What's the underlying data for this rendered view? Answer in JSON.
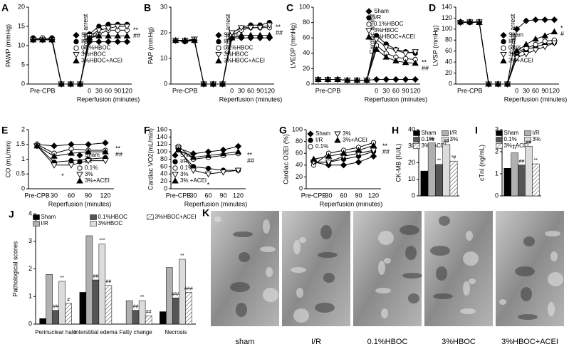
{
  "chart_data": [
    {
      "type": "line",
      "panel": "A",
      "ylabel": "PAWP (mmHg)",
      "xlabel": "Reperfusion (minutes)",
      "arrest_label": "Cardiac arrest",
      "categories": [
        null,
        "Pre-CPB",
        null,
        null,
        null,
        null,
        "0",
        "30",
        "60",
        "90",
        "120"
      ],
      "ylim": [
        0,
        20
      ],
      "yticks": [
        0,
        5,
        10,
        15,
        20
      ],
      "legend": "center right",
      "annotations": [
        "**",
        "##"
      ],
      "series": [
        {
          "name": "Sham",
          "color": "#000000",
          "marker": "diamond",
          "values": [
            11.5,
            11.5,
            11.5,
            0,
            0,
            0,
            11,
            11,
            11,
            11,
            11
          ]
        },
        {
          "name": "I/R",
          "color": "#000000",
          "marker": "circle",
          "values": [
            12,
            11.5,
            12,
            0,
            0,
            0,
            13,
            15,
            15.5,
            15.5,
            15.5
          ]
        },
        {
          "name": "0.1%HBOC",
          "color": "#000000",
          "marker": "circle-open",
          "values": [
            11.5,
            12,
            11.5,
            0,
            0,
            0,
            12,
            13,
            14,
            14,
            14
          ]
        },
        {
          "name": "3%HBOC",
          "color": "#000000",
          "marker": "triangle-down-open",
          "values": [
            11.5,
            11.5,
            11.5,
            0,
            0,
            0,
            12.5,
            14,
            14.5,
            15,
            15
          ]
        },
        {
          "name": "3%HBOC+ACEI",
          "color": "#000000",
          "marker": "triangle-up",
          "values": [
            11.5,
            11.5,
            11.5,
            0,
            0,
            0,
            12,
            12.5,
            12.5,
            12.5,
            12.5
          ]
        }
      ]
    },
    {
      "type": "line",
      "panel": "B",
      "ylabel": "PAP (mmHg)",
      "xlabel": "Reperfusion (minutes)",
      "arrest_label": "Cardiac arrest",
      "categories": [
        null,
        "Pre-CPB",
        null,
        null,
        null,
        null,
        "0",
        "30",
        "60",
        "90",
        "120"
      ],
      "ylim": [
        0,
        30
      ],
      "yticks": [
        0,
        10,
        20,
        30
      ],
      "legend": "center right",
      "annotations": [
        "**",
        "##"
      ],
      "series": [
        {
          "name": "Sham",
          "color": "#000000",
          "marker": "diamond",
          "values": [
            17,
            17,
            17,
            0,
            0,
            0,
            18,
            18,
            18,
            18,
            18
          ]
        },
        {
          "name": "I/R",
          "color": "#000000",
          "marker": "circle",
          "values": [
            17,
            16.5,
            17,
            0,
            0,
            0,
            20,
            22,
            23,
            23,
            24
          ]
        },
        {
          "name": "0.1%HBOC",
          "color": "#000000",
          "marker": "circle-open",
          "values": [
            17,
            17,
            17,
            0,
            0,
            0,
            19,
            21,
            22,
            22,
            22
          ]
        },
        {
          "name": "3%HBOC",
          "color": "#000000",
          "marker": "triangle-down-open",
          "values": [
            17,
            17,
            17.5,
            0,
            0,
            0,
            20,
            22,
            22,
            22,
            23
          ]
        },
        {
          "name": "3%HBOC+ACEI",
          "color": "#000000",
          "marker": "triangle-up",
          "values": [
            17,
            17,
            17,
            0,
            0,
            0,
            18,
            19,
            19,
            19,
            19
          ]
        }
      ]
    },
    {
      "type": "line",
      "panel": "C",
      "ylabel": "LVEDP (mmHg)",
      "xlabel": "Reperfusion (minutes)",
      "arrest_label": "Cardiac arrest",
      "categories": [
        null,
        "Pre-CPB",
        null,
        null,
        null,
        null,
        "0",
        "30",
        "60",
        "90",
        "120"
      ],
      "ylim": [
        0,
        100
      ],
      "yticks": [
        0,
        20,
        40,
        60,
        80,
        100
      ],
      "legend": "upper right",
      "annotations": [
        "**",
        "##"
      ],
      "series": [
        {
          "name": "Sham",
          "color": "#000000",
          "marker": "diamond",
          "values": [
            6,
            6,
            6,
            5,
            5,
            5,
            6,
            6,
            6,
            6,
            6
          ]
        },
        {
          "name": "I/R",
          "color": "#000000",
          "marker": "circle",
          "values": [
            6,
            6,
            6,
            5,
            5,
            5,
            63,
            52,
            45,
            42,
            40
          ]
        },
        {
          "name": "0.1%HBOC",
          "color": "#000000",
          "marker": "circle-open",
          "values": [
            6,
            6,
            6,
            5,
            5,
            5,
            50,
            40,
            35,
            33,
            32
          ]
        },
        {
          "name": "3%HBOC",
          "color": "#000000",
          "marker": "triangle-down-open",
          "values": [
            6,
            6,
            6,
            5,
            5,
            5,
            58,
            48,
            44,
            40,
            42
          ]
        },
        {
          "name": "3%HBOC+ACEI",
          "color": "#000000",
          "marker": "triangle-up",
          "values": [
            6,
            6,
            6,
            5,
            5,
            5,
            45,
            35,
            30,
            28,
            27
          ]
        }
      ]
    },
    {
      "type": "line",
      "panel": "D",
      "ylabel": "LVSP (mmHg)",
      "xlabel": "Reperfusion (minutes)",
      "arrest_label": "Cardiac arrest",
      "categories": [
        null,
        "Pre-CPB",
        null,
        null,
        null,
        null,
        "0",
        "30",
        "60",
        "90",
        "120"
      ],
      "ylim": [
        0,
        140
      ],
      "yticks": [
        0,
        20,
        40,
        60,
        80,
        100,
        120,
        140
      ],
      "legend": "center right",
      "annotations": [
        "*",
        "#"
      ],
      "series": [
        {
          "name": "Sham",
          "color": "#000000",
          "marker": "diamond",
          "values": [
            113,
            113,
            113,
            0,
            0,
            0,
            100,
            115,
            117,
            117,
            117
          ]
        },
        {
          "name": "I/R",
          "color": "#000000",
          "marker": "circle",
          "values": [
            112,
            112,
            113,
            0,
            0,
            0,
            55,
            62,
            68,
            72,
            75
          ]
        },
        {
          "name": "0.1%",
          "color": "#000000",
          "marker": "circle-open",
          "values": [
            113,
            112,
            113,
            0,
            0,
            0,
            58,
            65,
            72,
            78,
            80
          ]
        },
        {
          "name": "3%",
          "color": "#000000",
          "marker": "triangle-down-open",
          "values": [
            112,
            113,
            113,
            0,
            0,
            0,
            48,
            55,
            62,
            68,
            75
          ]
        },
        {
          "name": "3%+ACEI",
          "color": "#000000",
          "marker": "triangle-up",
          "values": [
            113,
            113,
            112,
            0,
            0,
            0,
            60,
            72,
            82,
            88,
            95
          ]
        }
      ]
    },
    {
      "type": "line",
      "panel": "E",
      "ylabel": "CO (mL/min)",
      "xlabel": "Reperfusion (minutes)",
      "categories": [
        "Pre-CPB",
        "30",
        "60",
        "90",
        "120"
      ],
      "ylim": [
        0,
        2
      ],
      "yticks": [
        0,
        0.5,
        1,
        1.5,
        2
      ],
      "legend": "lower right",
      "annotations": [
        "**",
        "##"
      ],
      "note_below": "*",
      "series": [
        {
          "name": "Sham",
          "color": "#000000",
          "marker": "diamond",
          "values": [
            1.5,
            1.45,
            1.5,
            1.5,
            1.55
          ]
        },
        {
          "name": "I/R",
          "color": "#000000",
          "marker": "circle",
          "values": [
            1.45,
            0.9,
            0.95,
            1.0,
            1.05
          ]
        },
        {
          "name": "0.1%",
          "color": "#000000",
          "marker": "circle-open",
          "values": [
            1.5,
            1.2,
            1.35,
            1.3,
            1.3
          ]
        },
        {
          "name": "3%",
          "color": "#000000",
          "marker": "triangle-down-open",
          "values": [
            1.45,
            0.8,
            0.8,
            0.95,
            0.95
          ]
        },
        {
          "name": "3%+ACEI",
          "color": "#000000",
          "marker": "triangle-up",
          "values": [
            1.45,
            1.1,
            1.2,
            1.25,
            1.25
          ]
        }
      ]
    },
    {
      "type": "line",
      "panel": "F",
      "ylabel": "Cardiac VO2(mL/min)",
      "xlabel": "Reperfusion (minutes)",
      "categories": [
        "Pre-CPB",
        "30",
        "60",
        "90",
        "120"
      ],
      "ylim": [
        0,
        160
      ],
      "yticks": [
        0,
        20,
        40,
        60,
        80,
        100,
        120,
        140,
        160
      ],
      "legend": "lower left",
      "annotations": [
        "**",
        "##"
      ],
      "note_below": "*",
      "series": [
        {
          "name": "Sham",
          "color": "#000000",
          "marker": "diamond",
          "values": [
            110,
            95,
            100,
            105,
            115
          ]
        },
        {
          "name": "I/R",
          "color": "#000000",
          "marker": "circle",
          "values": [
            105,
            60,
            55,
            50,
            50
          ]
        },
        {
          "name": "0.1%",
          "color": "#000000",
          "marker": "circle-open",
          "values": [
            115,
            80,
            85,
            90,
            95
          ]
        },
        {
          "name": "3%",
          "color": "#000000",
          "marker": "triangle-down-open",
          "values": [
            110,
            50,
            40,
            45,
            50
          ]
        },
        {
          "name": "3% +ACEI",
          "color": "#000000",
          "marker": "triangle-up",
          "values": [
            105,
            85,
            90,
            95,
            100
          ]
        }
      ]
    },
    {
      "type": "line",
      "panel": "G",
      "ylabel": "Cardiac O2EI (%)",
      "xlabel": "Reperfusion (minutes)",
      "categories": [
        "Pre-CPB",
        "30",
        "60",
        "90",
        "120"
      ],
      "ylim": [
        0,
        100
      ],
      "yticks": [
        0,
        20,
        40,
        60,
        80,
        100
      ],
      "legend": "upper left",
      "annotations": [
        "**",
        "##"
      ],
      "series": [
        {
          "name": "Sham",
          "color": "#000000",
          "marker": "diamond",
          "values": [
            45,
            40,
            40,
            45,
            55
          ]
        },
        {
          "name": "I/R",
          "color": "#000000",
          "marker": "circle",
          "values": [
            45,
            45,
            50,
            55,
            63
          ]
        },
        {
          "name": "0.1%",
          "color": "#000000",
          "marker": "circle-open",
          "values": [
            40,
            60,
            65,
            70,
            78
          ]
        },
        {
          "name": "3%",
          "color": "#000000",
          "marker": "triangle-down-open",
          "values": [
            45,
            45,
            55,
            60,
            65
          ]
        },
        {
          "name": "3%+ACEI",
          "color": "#000000",
          "marker": "triangle-up",
          "values": [
            50,
            55,
            60,
            65,
            73
          ]
        }
      ]
    },
    {
      "type": "bar",
      "panel": "H",
      "ylabel": "CK-MB (IU/L)",
      "ylim": [
        0,
        40
      ],
      "yticks": [
        0,
        10,
        20,
        30,
        40
      ],
      "legend": "upper center",
      "series": [
        {
          "name": "Sham",
          "color": "#000000",
          "values": [
            15
          ]
        },
        {
          "name": "I/R",
          "color": "#b0b0b0",
          "values": [
            32
          ],
          "marks": [
            "##"
          ]
        },
        {
          "name": "0.1%",
          "color": "#555555",
          "values": [
            19
          ],
          "marks": [
            "**"
          ]
        },
        {
          "name": "3%",
          "color": "#dcdcdc",
          "values": [
            31
          ],
          "marks": [
            "##"
          ]
        },
        {
          "name": "3%+ACEI",
          "color": "#ffffff",
          "hatch": true,
          "values": [
            21
          ],
          "marks": [
            "*#"
          ]
        }
      ]
    },
    {
      "type": "bar",
      "panel": "I",
      "ylabel": "cTnI (ng/mL)",
      "ylim": [
        0,
        3
      ],
      "yticks": [
        0,
        1,
        2,
        3
      ],
      "legend": "upper center",
      "series": [
        {
          "name": "Sham",
          "color": "#000000",
          "values": [
            1.25
          ]
        },
        {
          "name": "I/R",
          "color": "#b0b0b0",
          "values": [
            1.95
          ],
          "marks": [
            "**"
          ]
        },
        {
          "name": "0.1%",
          "color": "#555555",
          "values": [
            1.4
          ],
          "marks": [
            "##"
          ]
        },
        {
          "name": "3%",
          "color": "#dcdcdc",
          "values": [
            2.25
          ],
          "marks": [
            "##"
          ]
        },
        {
          "name": "3%+ACEI",
          "color": "#ffffff",
          "hatch": true,
          "values": [
            1.45
          ],
          "marks": [
            "**"
          ]
        }
      ]
    },
    {
      "type": "bar",
      "panel": "J",
      "ylabel": "Pathological scores",
      "categories": [
        "Perinuclear halo",
        "Interstitial edema",
        "Fatty change",
        "Necrosis"
      ],
      "ylim": [
        0,
        4
      ],
      "yticks": [
        0,
        1,
        2,
        3,
        4
      ],
      "legend": "upper center",
      "series": [
        {
          "name": "Sham",
          "color": "#000000",
          "values": [
            0.2,
            1.15,
            0,
            0.45
          ]
        },
        {
          "name": "I/R",
          "color": "#b0b0b0",
          "values": [
            1.8,
            3.2,
            0.85,
            2.05
          ]
        },
        {
          "name": "0.1%HBOC",
          "color": "#555555",
          "values": [
            0.5,
            1.6,
            0.5,
            0.95
          ],
          "marks": [
            "##",
            "##",
            "##",
            "###"
          ]
        },
        {
          "name": "3%HBOC",
          "color": "#dcdcdc",
          "values": [
            1.55,
            2.9,
            0.85,
            2.35
          ],
          "marks": [
            "**",
            "***",
            "**",
            "**"
          ]
        },
        {
          "name": "3%HBOC+ACEI",
          "color": "#ffffff",
          "hatch": true,
          "values": [
            0.75,
            1.4,
            0.3,
            1.15
          ],
          "marks": [
            "#",
            "##",
            "##",
            "###"
          ]
        }
      ]
    }
  ],
  "panel_k": {
    "label": "K",
    "captions": [
      "sham",
      "I/R",
      "0.1%HBOC",
      "3%HBOC",
      "3%HBOC+ACEI"
    ]
  }
}
